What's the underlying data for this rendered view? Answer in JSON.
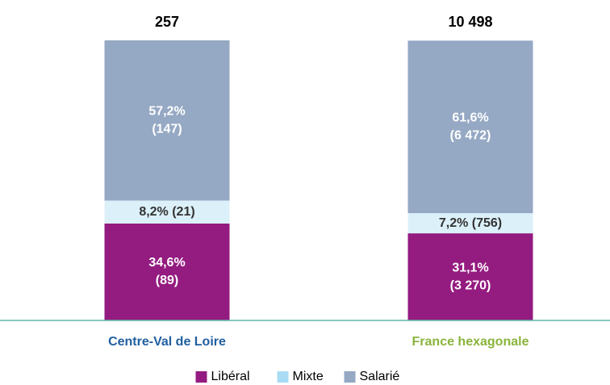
{
  "chart_data": {
    "type": "stacked_bar",
    "categories": [
      "Centre-Val de Loire",
      "France hexagonale"
    ],
    "category_colors": [
      "#1f5fa0",
      "#8ab43c"
    ],
    "ylim": [
      0,
      100
    ],
    "totals": {
      "values": [
        257,
        10498
      ],
      "value_labels": [
        "257",
        "10 498"
      ]
    },
    "series": [
      {
        "name": "Libéral",
        "color": "#941b80",
        "values": [
          34.6,
          31.1
        ],
        "value_labels": [
          [
            "34,6%",
            "(89)"
          ],
          [
            "31,1%",
            "(3 270)"
          ]
        ]
      },
      {
        "name": "Mixte",
        "color": "#dcf0fa",
        "values": [
          8.2,
          7.2
        ],
        "value_labels": [
          [
            "8,2% (21)"
          ],
          [
            "7,2% (756)"
          ]
        ]
      },
      {
        "name": "Salarié",
        "color": "#95a8c4",
        "values": [
          57.2,
          61.6
        ],
        "value_labels": [
          [
            "57,2%",
            "(147)"
          ],
          [
            "61,6%",
            "(6 472)"
          ]
        ]
      }
    ],
    "legend": "bottom"
  }
}
